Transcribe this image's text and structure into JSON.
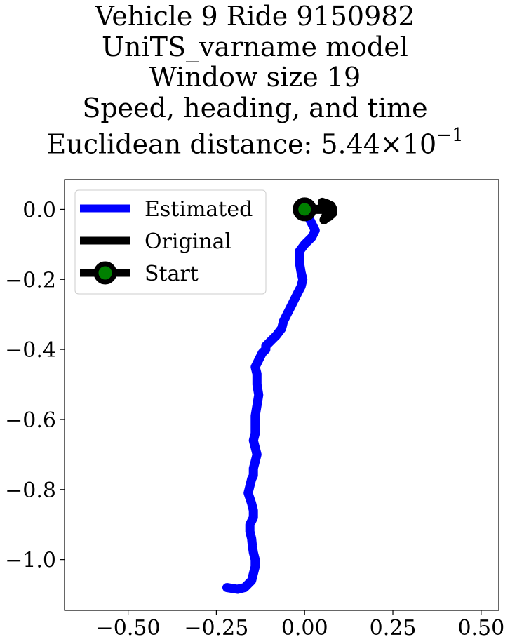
{
  "title": {
    "line1": "Vehicle 9 Ride 9150982",
    "line2": "UniTS_varname model",
    "line3": "Window size 19",
    "line4": "Speed, heading, and time",
    "line5_prefix": "Euclidean distance: ",
    "line5_mantissa": "5.44",
    "line5_times": "×",
    "line5_base": "10",
    "line5_exponent": "−1"
  },
  "legend": {
    "estimated": "Estimated",
    "original": "Original",
    "start": "Start"
  },
  "colors": {
    "estimated": "#0000ff",
    "original": "#000000",
    "start_fill": "#008000",
    "start_edge": "#000000"
  },
  "chart_data": {
    "type": "line",
    "title": "Vehicle 9 Ride 9150982 / UniTS_varname model / Window size 19 / Speed, heading, and time / Euclidean distance: 5.44×10^-1",
    "xlabel": "",
    "ylabel": "",
    "xlim": [
      -0.68,
      0.55
    ],
    "ylim": [
      -1.145,
      0.085
    ],
    "xticks": [
      -0.5,
      -0.25,
      0.0,
      0.25,
      0.5
    ],
    "xtick_labels": [
      "−0.50",
      "−0.25",
      "0.00",
      "0.25",
      "0.50"
    ],
    "yticks": [
      0.0,
      -0.2,
      -0.4,
      -0.6,
      -0.8,
      -1.0
    ],
    "ytick_labels": [
      "0.0",
      "−0.2",
      "−0.4",
      "−0.6",
      "−0.8",
      "−1.0"
    ],
    "grid": false,
    "legend_position": "top-left",
    "series": [
      {
        "name": "Estimated",
        "x": [
          0.0,
          0.01,
          0.02,
          0.03,
          0.02,
          0.0,
          -0.015,
          -0.015,
          -0.01,
          -0.005,
          -0.01,
          -0.02,
          -0.03,
          -0.04,
          -0.05,
          -0.06,
          -0.065,
          -0.08,
          -0.09,
          -0.1,
          -0.11,
          -0.11,
          -0.12,
          -0.13,
          -0.14,
          -0.135,
          -0.135,
          -0.13,
          -0.135,
          -0.14,
          -0.14,
          -0.14,
          -0.145,
          -0.14,
          -0.135,
          -0.14,
          -0.145,
          -0.145,
          -0.15,
          -0.155,
          -0.16,
          -0.15,
          -0.145,
          -0.145,
          -0.155,
          -0.155,
          -0.15,
          -0.148,
          -0.145,
          -0.14,
          -0.14,
          -0.145,
          -0.15,
          -0.17,
          -0.19,
          -0.22
        ],
        "y": [
          0.0,
          -0.02,
          -0.04,
          -0.06,
          -0.08,
          -0.1,
          -0.12,
          -0.15,
          -0.18,
          -0.2,
          -0.22,
          -0.24,
          -0.26,
          -0.28,
          -0.3,
          -0.32,
          -0.34,
          -0.36,
          -0.37,
          -0.38,
          -0.39,
          -0.4,
          -0.41,
          -0.43,
          -0.45,
          -0.47,
          -0.5,
          -0.53,
          -0.56,
          -0.59,
          -0.62,
          -0.64,
          -0.66,
          -0.68,
          -0.7,
          -0.72,
          -0.74,
          -0.76,
          -0.77,
          -0.79,
          -0.81,
          -0.84,
          -0.86,
          -0.88,
          -0.9,
          -0.92,
          -0.94,
          -0.96,
          -0.98,
          -1.0,
          -1.02,
          -1.04,
          -1.06,
          -1.08,
          -1.085,
          -1.08
        ]
      },
      {
        "name": "Original",
        "x": [
          0.0,
          0.03,
          0.05,
          0.065,
          0.075,
          0.08,
          0.07,
          0.06,
          0.055,
          0.06,
          0.07,
          0.075,
          0.065,
          0.05,
          0.055,
          0.07,
          0.08,
          0.075,
          0.065
        ],
        "y": [
          0.0,
          0.0,
          0.0,
          0.0,
          0.01,
          0.0,
          -0.01,
          -0.02,
          -0.03,
          -0.025,
          -0.02,
          -0.01,
          0.015,
          0.02,
          0.01,
          0.0,
          -0.01,
          -0.015,
          -0.02
        ]
      },
      {
        "name": "Start",
        "x": [
          0.0
        ],
        "y": [
          0.0
        ]
      }
    ]
  }
}
